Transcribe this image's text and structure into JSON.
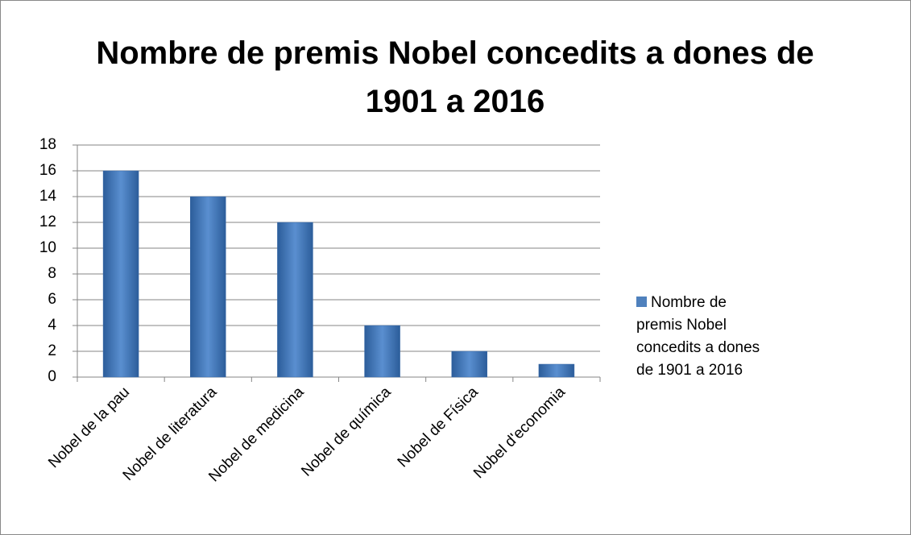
{
  "chart_data": {
    "type": "bar",
    "title": "Nombre de premis Nobel concedits a dones de 1901 a 2016",
    "categories": [
      "Nobel de la pau",
      "Nobel de literatura",
      "Nobel de medicina",
      "Nobel de química",
      "Nobel de Física",
      "Nobel d'economia"
    ],
    "series": [
      {
        "name": "Nombre de premis Nobel concedits a dones de 1901 a 2016",
        "color": "#4f81bd",
        "values": [
          16,
          14,
          12,
          4,
          2,
          1
        ]
      }
    ],
    "ylim": [
      0,
      18
    ],
    "yticks": [
      0,
      2,
      4,
      6,
      8,
      10,
      12,
      14,
      16,
      18
    ],
    "grid": true,
    "legend": "right"
  }
}
